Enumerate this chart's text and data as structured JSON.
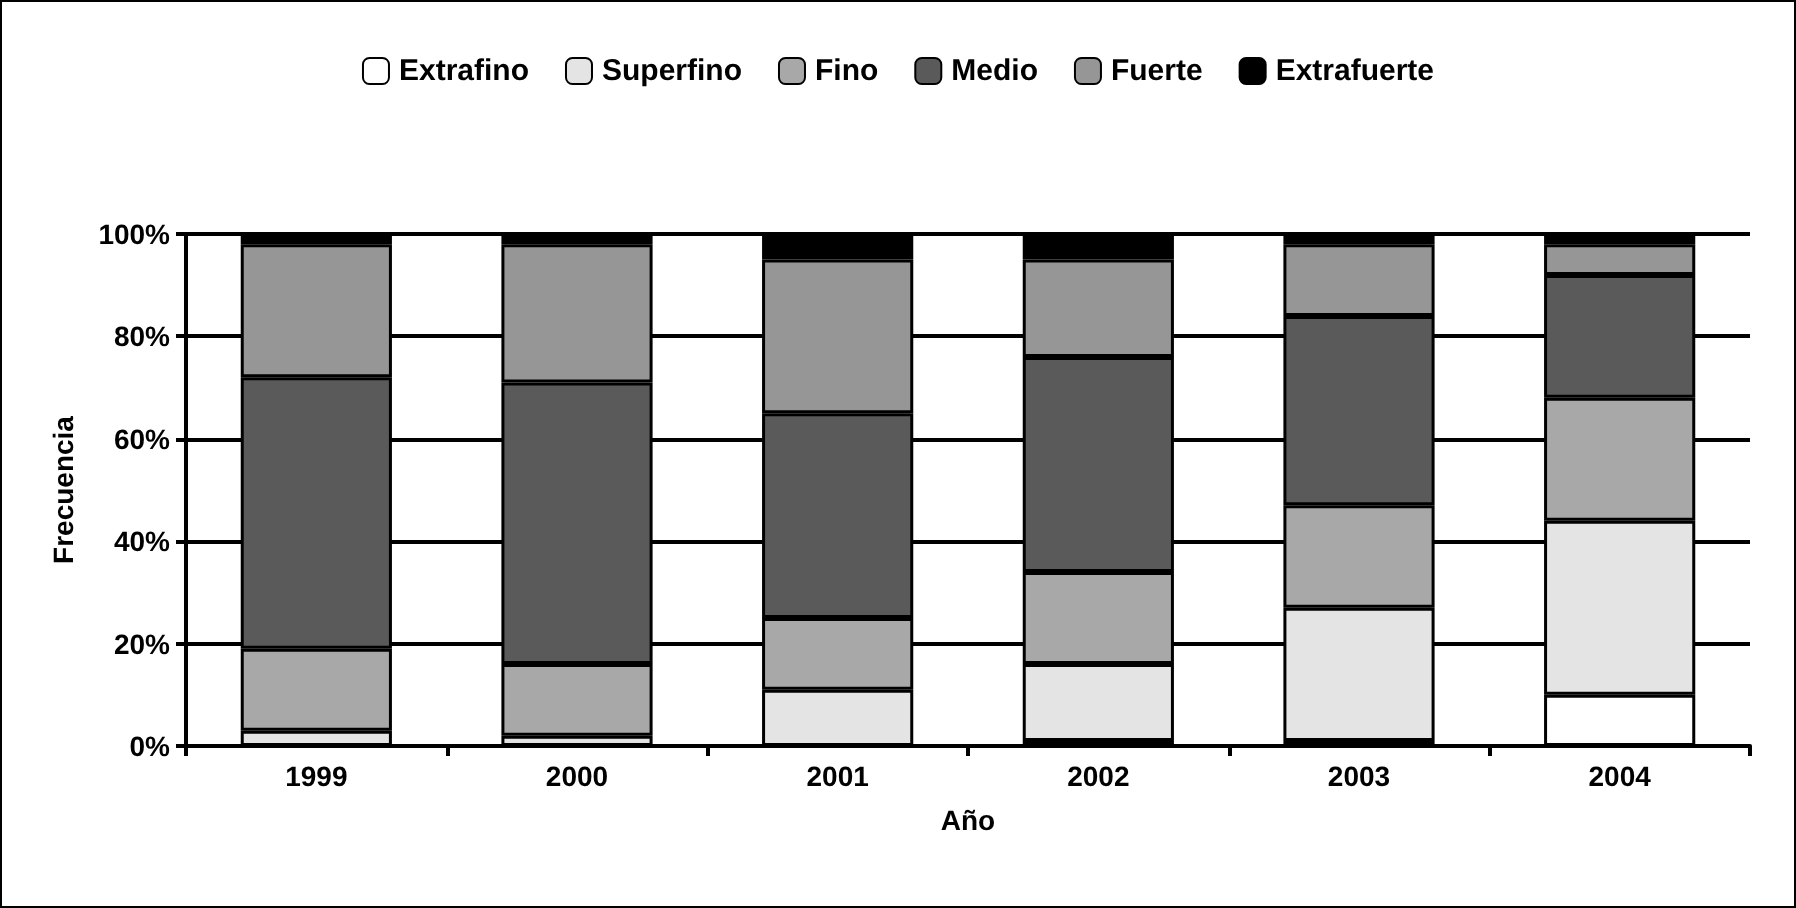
{
  "chart_data": {
    "type": "bar",
    "stacked": true,
    "xlabel": "Año",
    "ylabel": "Frecuencia",
    "categories": [
      "1999",
      "2000",
      "2001",
      "2002",
      "2003",
      "2004"
    ],
    "series": [
      {
        "name": "Extrafino",
        "color": "#ffffff",
        "values": [
          0,
          0,
          0,
          1,
          1,
          10
        ]
      },
      {
        "name": "Superfino",
        "color": "#e4e4e4",
        "values": [
          3,
          2,
          11,
          15,
          26,
          34
        ]
      },
      {
        "name": "Fino",
        "color": "#a8a8a8",
        "values": [
          16,
          14,
          14,
          18,
          20,
          24
        ]
      },
      {
        "name": "Medio",
        "color": "#5a5a5a",
        "values": [
          53,
          55,
          40,
          42,
          37,
          24
        ]
      },
      {
        "name": "Fuerte",
        "color": "#969696",
        "values": [
          26,
          27,
          30,
          19,
          14,
          6
        ]
      },
      {
        "name": "Extrafuerte",
        "color": "#000000",
        "values": [
          2,
          2,
          5,
          5,
          2,
          2
        ]
      }
    ],
    "ylim": [
      0,
      100
    ],
    "yticks": [
      {
        "value": 0,
        "label": "0%"
      },
      {
        "value": 20,
        "label": "20%"
      },
      {
        "value": 40,
        "label": "40%"
      },
      {
        "value": 60,
        "label": "60%"
      },
      {
        "value": 80,
        "label": "80%"
      },
      {
        "value": 100,
        "label": "100%"
      }
    ],
    "grid": "y",
    "legend": "top"
  }
}
